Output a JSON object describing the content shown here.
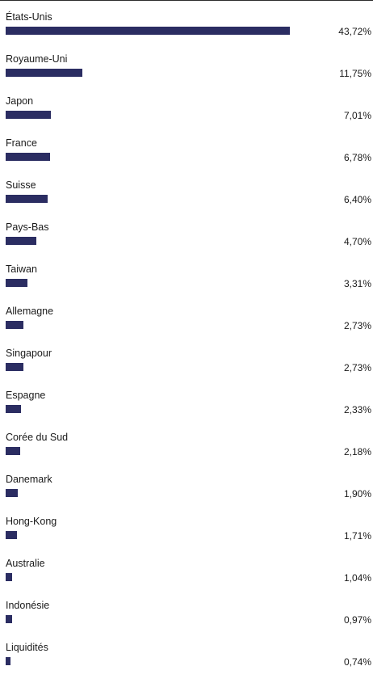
{
  "chart_data": {
    "type": "bar",
    "orientation": "horizontal",
    "categories": [
      "États-Unis",
      "Royaume-Uni",
      "Japon",
      "France",
      "Suisse",
      "Pays-Bas",
      "Taiwan",
      "Allemagne",
      "Singapour",
      "Espagne",
      "Corée du Sud",
      "Danemark",
      "Hong-Kong",
      "Australie",
      "Indonésie",
      "Liquidités"
    ],
    "values": [
      43.72,
      11.75,
      7.01,
      6.78,
      6.4,
      4.7,
      3.31,
      2.73,
      2.73,
      2.33,
      2.18,
      1.9,
      1.71,
      1.04,
      0.97,
      0.74
    ],
    "value_labels": [
      "43,72%",
      "11,75%",
      "7,01%",
      "6,78%",
      "6,40%",
      "4,70%",
      "3,31%",
      "2,73%",
      "2,73%",
      "2,33%",
      "2,18%",
      "1,90%",
      "1,71%",
      "1,04%",
      "0,97%",
      "0,74%"
    ],
    "bar_color": "#2b2d62",
    "grid": false,
    "legend": "none"
  }
}
